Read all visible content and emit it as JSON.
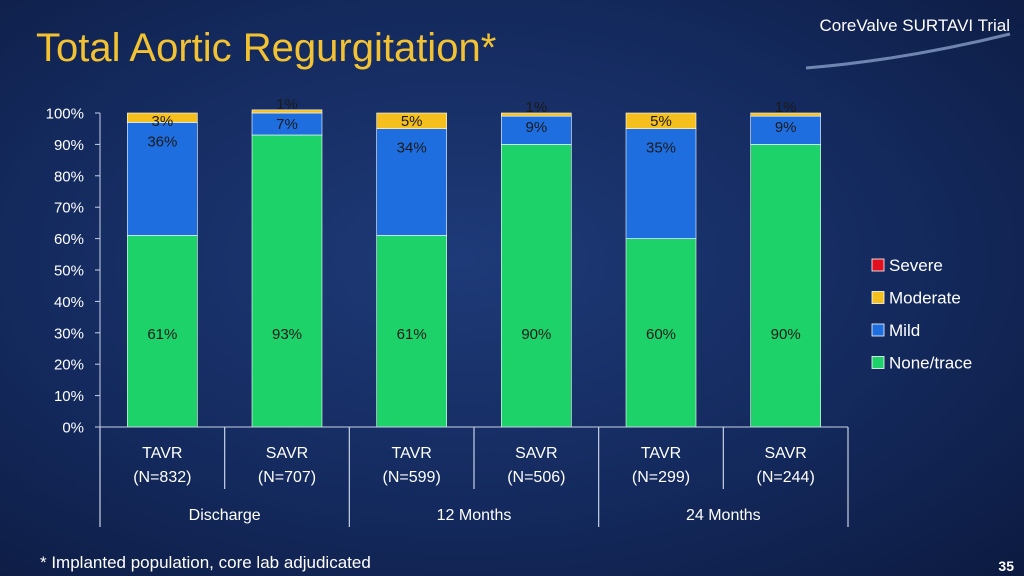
{
  "slide": {
    "title": "Total Aortic Regurgitation*",
    "brand": "CoreValve SURTAVI Trial",
    "footnote": "* Implanted population, core lab adjudicated",
    "page_number": "35"
  },
  "colors": {
    "background": "#142a5e",
    "title": "#f2c232",
    "text": "#ffffff",
    "none_trace": "#1ed26a",
    "mild": "#1f6ee0",
    "moderate": "#f5c01e",
    "severe": "#e0101e"
  },
  "chart_data": {
    "type": "bar",
    "stacked": true,
    "title": "",
    "xlabel": "",
    "ylabel": "",
    "ylim": [
      0,
      100
    ],
    "ytick_labels": [
      "0%",
      "10%",
      "20%",
      "30%",
      "40%",
      "50%",
      "60%",
      "70%",
      "80%",
      "90%",
      "100%"
    ],
    "categories": [
      {
        "line1": "TAVR",
        "line2": "(N=832)"
      },
      {
        "line1": "SAVR",
        "line2": "(N=707)"
      },
      {
        "line1": "TAVR",
        "line2": "(N=599)"
      },
      {
        "line1": "SAVR",
        "line2": "(N=506)"
      },
      {
        "line1": "TAVR",
        "line2": "(N=299)"
      },
      {
        "line1": "SAVR",
        "line2": "(N=244)"
      }
    ],
    "groups": [
      {
        "label": "Discharge",
        "span": 2
      },
      {
        "label": "12 Months",
        "span": 2
      },
      {
        "label": "24 Months",
        "span": 2
      }
    ],
    "series": [
      {
        "name": "None/trace",
        "color": "#1ed26a",
        "values": [
          61,
          93,
          61,
          90,
          60,
          90
        ],
        "labels": [
          "61%",
          "93%",
          "61%",
          "90%",
          "60%",
          "90%"
        ]
      },
      {
        "name": "Mild",
        "color": "#1f6ee0",
        "values": [
          36,
          7,
          34,
          9,
          35,
          9
        ],
        "labels": [
          "36%",
          "7%",
          "34%",
          "9%",
          "35%",
          "9%"
        ]
      },
      {
        "name": "Moderate",
        "color": "#f5c01e",
        "values": [
          3,
          1,
          5,
          1,
          5,
          1
        ],
        "labels": [
          "3%",
          "1%",
          "5%",
          "1%",
          "5%",
          "1%"
        ]
      },
      {
        "name": "Severe",
        "color": "#e0101e",
        "values": [
          0,
          0,
          0,
          0,
          0,
          0
        ],
        "labels": [
          "",
          "",
          "",
          "",
          "",
          ""
        ]
      }
    ],
    "legend_order": [
      "Severe",
      "Moderate",
      "Mild",
      "None/trace"
    ],
    "legend_position": "right",
    "grid": false
  }
}
